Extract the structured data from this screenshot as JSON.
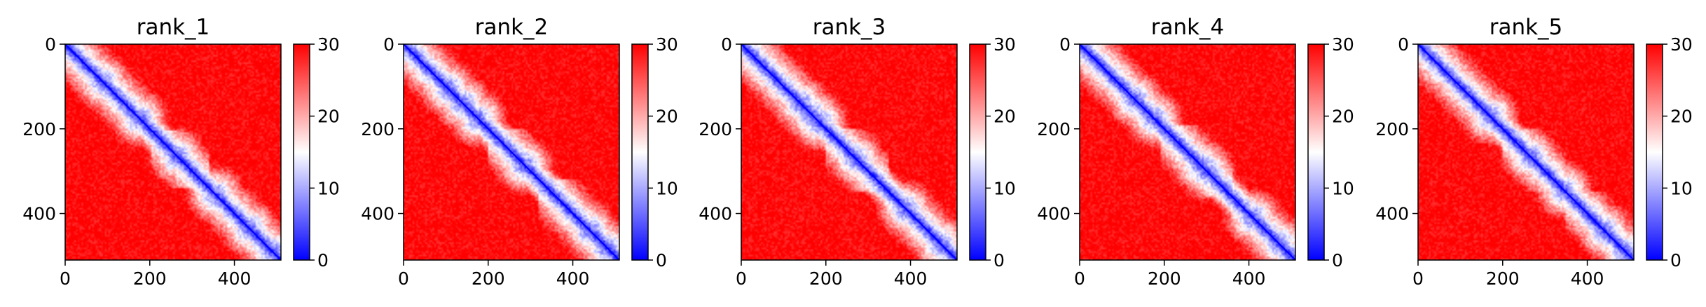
{
  "figure": {
    "colormap": {
      "name": "bwr",
      "low": "#0000ff",
      "mid": "#ffffff",
      "high": "#ff0000"
    }
  },
  "chart_data": [
    {
      "type": "heatmap",
      "title": "rank_1",
      "x_ticks": [
        "0",
        "200",
        "400"
      ],
      "y_ticks": [
        "0",
        "200",
        "400"
      ],
      "xlim": [
        0,
        510
      ],
      "ylim": [
        510,
        0
      ],
      "colorbar": {
        "range": [
          0,
          30
        ],
        "ticks": [
          "0",
          "10",
          "20",
          "30"
        ]
      },
      "matrix_size": 510,
      "domains": [
        [
          0,
          205
        ],
        [
          205,
          340
        ],
        [
          340,
          510
        ]
      ],
      "hotspots": [
        90,
        175,
        265,
        355,
        435,
        490
      ]
    },
    {
      "type": "heatmap",
      "title": "rank_2",
      "x_ticks": [
        "0",
        "200",
        "400"
      ],
      "y_ticks": [
        "0",
        "200",
        "400"
      ],
      "xlim": [
        0,
        510
      ],
      "ylim": [
        510,
        0
      ],
      "colorbar": {
        "range": [
          0,
          30
        ],
        "ticks": [
          "0",
          "10",
          "20",
          "30"
        ]
      },
      "matrix_size": 510,
      "domains": [
        [
          0,
          200
        ],
        [
          200,
          320
        ],
        [
          320,
          510
        ]
      ],
      "hotspots": [
        105,
        140,
        175,
        285,
        440,
        480
      ]
    },
    {
      "type": "heatmap",
      "title": "rank_3",
      "x_ticks": [
        "0",
        "200",
        "400"
      ],
      "y_ticks": [
        "0",
        "200",
        "400"
      ],
      "xlim": [
        0,
        510
      ],
      "ylim": [
        510,
        0
      ],
      "colorbar": {
        "range": [
          0,
          30
        ],
        "ticks": [
          "0",
          "10",
          "20",
          "30"
        ]
      },
      "matrix_size": 510,
      "domains": [
        [
          0,
          200
        ],
        [
          200,
          350
        ],
        [
          350,
          510
        ]
      ],
      "hotspots": [
        140,
        165,
        185,
        270,
        390,
        470
      ]
    },
    {
      "type": "heatmap",
      "title": "rank_4",
      "x_ticks": [
        "0",
        "200",
        "400"
      ],
      "y_ticks": [
        "0",
        "200",
        "400"
      ],
      "xlim": [
        0,
        510
      ],
      "ylim": [
        510,
        0
      ],
      "colorbar": {
        "range": [
          0,
          30
        ],
        "ticks": [
          "0",
          "10",
          "20",
          "30"
        ]
      },
      "matrix_size": 510,
      "domains": [
        [
          0,
          190
        ],
        [
          190,
          360
        ],
        [
          360,
          510
        ]
      ],
      "hotspots": [
        130,
        175,
        285,
        300,
        410,
        470
      ]
    },
    {
      "type": "heatmap",
      "title": "rank_5",
      "x_ticks": [
        "0",
        "200",
        "400"
      ],
      "y_ticks": [
        "0",
        "200",
        "400"
      ],
      "xlim": [
        0,
        510
      ],
      "ylim": [
        510,
        0
      ],
      "colorbar": {
        "range": [
          0,
          30
        ],
        "ticks": [
          "0",
          "10",
          "20",
          "30"
        ]
      },
      "matrix_size": 510,
      "domains": [
        [
          0,
          200
        ],
        [
          200,
          350
        ],
        [
          350,
          510
        ]
      ],
      "hotspots": [
        170,
        265,
        345,
        440,
        490
      ]
    }
  ]
}
